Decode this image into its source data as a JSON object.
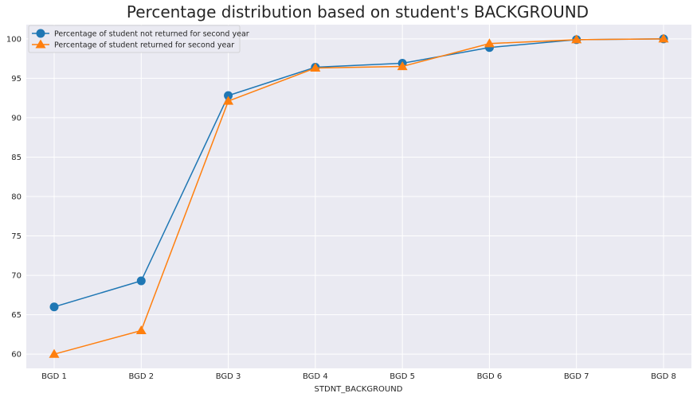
{
  "chart_data": {
    "type": "line",
    "title": "Percentage distribution based on student's BACKGROUND",
    "xlabel": "STDNT_BACKGROUND",
    "ylabel": "",
    "categories": [
      "BGD 1",
      "BGD 2",
      "BGD 3",
      "BGD 4",
      "BGD 5",
      "BGD 6",
      "BGD 7",
      "BGD 8"
    ],
    "ylim": [
      58.2,
      101.8
    ],
    "yticks": [
      60,
      65,
      70,
      75,
      80,
      85,
      90,
      95,
      100
    ],
    "grid": true,
    "legend_position": "top-left",
    "series": [
      {
        "name": "Percentage of student not returned for second year",
        "color": "#1f77b4",
        "marker": "circle",
        "values": [
          66.0,
          69.3,
          92.8,
          96.4,
          96.9,
          98.9,
          99.9,
          100.0
        ]
      },
      {
        "name": "Percentage of student returned for second year",
        "color": "#ff7f0e",
        "marker": "triangle",
        "values": [
          60.0,
          63.0,
          92.1,
          96.3,
          96.5,
          99.4,
          99.9,
          100.0
        ]
      }
    ]
  }
}
